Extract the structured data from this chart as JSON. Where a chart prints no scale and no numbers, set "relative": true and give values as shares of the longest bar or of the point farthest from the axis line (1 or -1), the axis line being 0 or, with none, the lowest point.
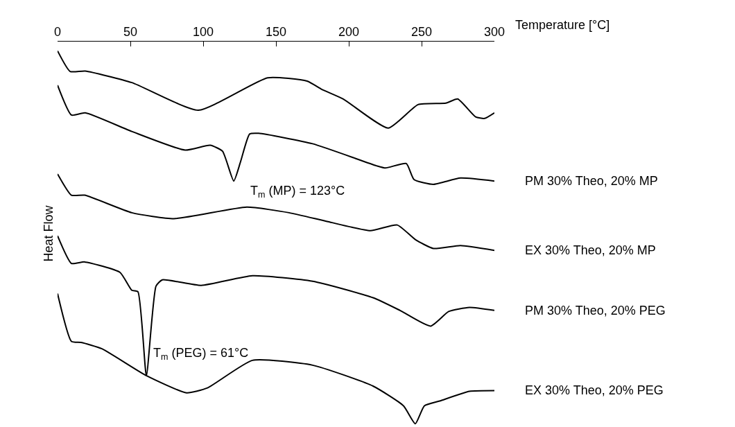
{
  "chart_data": {
    "type": "line",
    "relative": true,
    "xlabel": "Temperature [°C]",
    "ylabel": "Heat Flow",
    "xlim": [
      0,
      300
    ],
    "xticks": [
      0,
      50,
      100,
      150,
      200,
      250,
      300
    ],
    "legend": false,
    "marker": "none",
    "line_style": "solid",
    "series": [
      {
        "color": "#000000",
        "x": [
          0,
          8.6,
          19.0,
          51.0,
          96.7,
          144.3,
          171.4,
          181.4,
          196.2,
          227.1,
          247.6,
          266.7,
          274.8,
          287.1,
          293.3,
          300
        ],
        "values": [
          1.0,
          0.945,
          0.946,
          0.915,
          0.841,
          0.928,
          0.919,
          0.897,
          0.871,
          0.793,
          0.856,
          0.86,
          0.871,
          0.823,
          0.819,
          0.834
        ]
      },
      {
        "name": "PM 30% Theo, 20% MP",
        "color": "#000000",
        "x": [
          0,
          9.5,
          19.0,
          51.0,
          87.6,
          104.8,
          113.3,
          121.0,
          125.7,
          131.9,
          138.1,
          175.2,
          219.0,
          225.2,
          239.5,
          244.8,
          258.1,
          276.7,
          300
        ],
        "values": [
          0.908,
          0.828,
          0.834,
          0.784,
          0.734,
          0.747,
          0.731,
          0.651,
          0.703,
          0.777,
          0.779,
          0.751,
          0.692,
          0.686,
          0.698,
          0.655,
          0.642,
          0.659,
          0.651
        ]
      },
      {
        "name": "EX 30% Theo, 20% MP",
        "color": "#000000",
        "x": [
          0,
          9.5,
          18.6,
          51.0,
          80.0,
          130.0,
          159.0,
          185.7,
          214.8,
          233.3,
          245.7,
          258.1,
          276.7,
          300
        ],
        "values": [
          0.67,
          0.613,
          0.613,
          0.566,
          0.55,
          0.581,
          0.566,
          0.542,
          0.518,
          0.533,
          0.494,
          0.47,
          0.478,
          0.465
        ]
      },
      {
        "name": "PM 30% Theo, 20% PEG",
        "color": "#000000",
        "x": [
          0,
          9.5,
          18.6,
          42.9,
          51.0,
          55.2,
          61.0,
          67.6,
          71.9,
          98.6,
          133.8,
          175.2,
          216.7,
          235.2,
          256.2,
          268.6,
          282.9,
          300
        ],
        "values": [
          0.504,
          0.43,
          0.434,
          0.406,
          0.358,
          0.354,
          0.129,
          0.369,
          0.386,
          0.371,
          0.397,
          0.382,
          0.338,
          0.304,
          0.262,
          0.301,
          0.312,
          0.304
        ]
      },
      {
        "name": "EX 30% Theo, 20% PEG",
        "color": "#000000",
        "x": [
          0,
          9.5,
          16.2,
          30.5,
          61.0,
          88.6,
          102.9,
          133.8,
          175.2,
          216.7,
          237.6,
          245.7,
          251.9,
          262.4,
          282.9,
          300
        ],
        "values": [
          0.349,
          0.221,
          0.218,
          0.201,
          0.129,
          0.083,
          0.096,
          0.17,
          0.157,
          0.101,
          0.048,
          0.0,
          0.048,
          0.061,
          0.087,
          0.089
        ]
      }
    ],
    "annotations": [
      {
        "text": "T$_{m}$ (MP) = 123°C",
        "x": 123,
        "y": 0.651
      },
      {
        "text": "T$_{m}$ (PEG) = 61°C",
        "x": 61,
        "y": 0.129
      }
    ]
  }
}
